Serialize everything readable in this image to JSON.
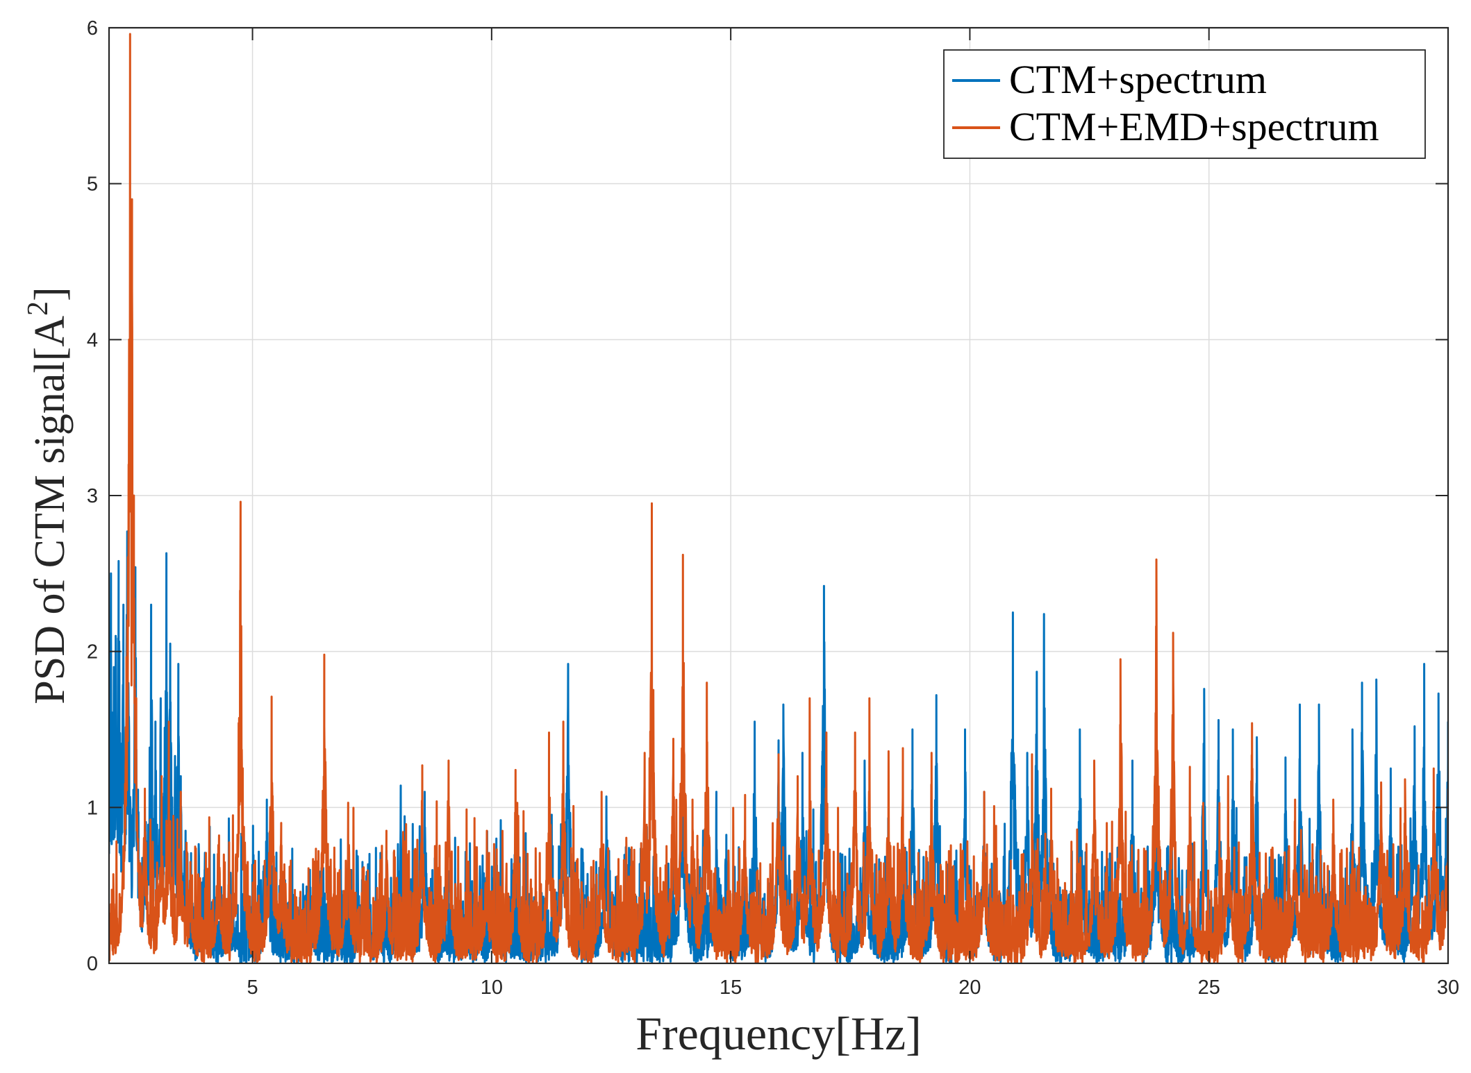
{
  "chart_data": {
    "type": "line",
    "title": "",
    "xlabel": "Frequency[Hz]",
    "ylabel": "PSD of CTM signal[A",
    "ylabel_superscript": "2",
    "ylabel_close": "]",
    "xlim": [
      2,
      30
    ],
    "ylim": [
      0,
      6
    ],
    "xticks": [
      5,
      10,
      15,
      20,
      25,
      30
    ],
    "yticks": [
      0,
      1,
      2,
      3,
      4,
      5,
      6
    ],
    "grid": true,
    "legend_position": "top-right",
    "series": [
      {
        "name": "CTM+spectrum",
        "color": "#0072BD",
        "peaks": [
          [
            2.04,
            2.5
          ],
          [
            2.1,
            1.9
          ],
          [
            2.14,
            2.1
          ],
          [
            2.2,
            2.58
          ],
          [
            2.3,
            2.3
          ],
          [
            2.38,
            2.77
          ],
          [
            2.55,
            2.54
          ],
          [
            2.75,
            1.0
          ],
          [
            2.88,
            2.3
          ],
          [
            2.97,
            1.55
          ],
          [
            3.08,
            1.7
          ],
          [
            3.2,
            2.63
          ],
          [
            3.28,
            2.05
          ],
          [
            3.38,
            1.33
          ],
          [
            3.45,
            1.92
          ],
          [
            3.5,
            1.2
          ],
          [
            3.6,
            0.85
          ],
          [
            4.0,
            0.6
          ],
          [
            4.5,
            0.5
          ],
          [
            5.3,
            1.05
          ],
          [
            6.2,
            0.6
          ],
          [
            7.3,
            0.65
          ],
          [
            8.1,
            1.14
          ],
          [
            8.6,
            1.1
          ],
          [
            10.1,
            0.8
          ],
          [
            11.5,
            1.15
          ],
          [
            11.6,
            1.92
          ],
          [
            12.4,
            1.07
          ],
          [
            14.0,
            1.72
          ],
          [
            14.7,
            1.1
          ],
          [
            15.5,
            1.55
          ],
          [
            16.0,
            1.43
          ],
          [
            16.1,
            1.66
          ],
          [
            16.5,
            1.35
          ],
          [
            16.95,
            2.42
          ],
          [
            17.8,
            1.3
          ],
          [
            18.8,
            1.5
          ],
          [
            19.3,
            1.72
          ],
          [
            19.9,
            1.5
          ],
          [
            20.3,
            1.1
          ],
          [
            20.9,
            2.25
          ],
          [
            21.2,
            1.35
          ],
          [
            21.4,
            1.87
          ],
          [
            21.55,
            2.24
          ],
          [
            22.3,
            1.5
          ],
          [
            23.4,
            1.3
          ],
          [
            23.9,
            1.47
          ],
          [
            24.9,
            1.76
          ],
          [
            25.2,
            1.56
          ],
          [
            25.5,
            1.5
          ],
          [
            26.0,
            1.45
          ],
          [
            26.6,
            1.32
          ],
          [
            26.9,
            1.66
          ],
          [
            27.3,
            1.66
          ],
          [
            28.0,
            1.5
          ],
          [
            28.2,
            1.8
          ],
          [
            28.5,
            1.82
          ],
          [
            28.8,
            1.25
          ],
          [
            29.3,
            1.52
          ],
          [
            29.5,
            1.92
          ],
          [
            29.8,
            1.73
          ],
          [
            30.0,
            1.55
          ]
        ]
      },
      {
        "name": "CTM+EMD+spectrum",
        "color": "#D95319",
        "peaks": [
          [
            2.3,
            0.75
          ],
          [
            2.35,
            1.33
          ],
          [
            2.38,
            2.2
          ],
          [
            2.41,
            3.2
          ],
          [
            2.44,
            5.96
          ],
          [
            2.48,
            4.9
          ],
          [
            2.52,
            3.0
          ],
          [
            2.57,
            1.7
          ],
          [
            2.75,
            1.12
          ],
          [
            3.1,
            1.2
          ],
          [
            3.25,
            1.55
          ],
          [
            3.5,
            1.1
          ],
          [
            3.7,
            0.65
          ],
          [
            4.3,
            0.82
          ],
          [
            4.75,
            2.96
          ],
          [
            5.4,
            1.71
          ],
          [
            5.6,
            0.9
          ],
          [
            6.5,
            1.98
          ],
          [
            7.0,
            1.03
          ],
          [
            7.8,
            0.85
          ],
          [
            8.55,
            1.27
          ],
          [
            9.1,
            1.3
          ],
          [
            9.9,
            0.85
          ],
          [
            10.5,
            1.24
          ],
          [
            11.2,
            1.48
          ],
          [
            11.5,
            1.55
          ],
          [
            12.3,
            1.1
          ],
          [
            13.2,
            1.35
          ],
          [
            13.35,
            2.95
          ],
          [
            13.8,
            1.44
          ],
          [
            14.0,
            2.62
          ],
          [
            14.2,
            1.05
          ],
          [
            14.5,
            1.8
          ],
          [
            15.3,
            1.08
          ],
          [
            16.0,
            1.34
          ],
          [
            16.4,
            1.2
          ],
          [
            16.65,
            1.7
          ],
          [
            17.0,
            1.48
          ],
          [
            17.6,
            1.48
          ],
          [
            17.9,
            1.7
          ],
          [
            18.3,
            1.36
          ],
          [
            18.6,
            1.38
          ],
          [
            19.2,
            1.35
          ],
          [
            20.3,
            1.1
          ],
          [
            21.3,
            1.34
          ],
          [
            21.7,
            1.12
          ],
          [
            22.6,
            1.3
          ],
          [
            23.15,
            1.95
          ],
          [
            23.9,
            2.59
          ],
          [
            24.25,
            2.12
          ],
          [
            24.6,
            1.26
          ],
          [
            25.4,
            1.2
          ],
          [
            25.9,
            1.54
          ],
          [
            26.8,
            1.05
          ],
          [
            27.6,
            1.05
          ],
          [
            28.6,
            1.16
          ],
          [
            29.1,
            1.18
          ],
          [
            29.7,
            1.25
          ],
          [
            30.0,
            1.12
          ]
        ]
      }
    ]
  }
}
